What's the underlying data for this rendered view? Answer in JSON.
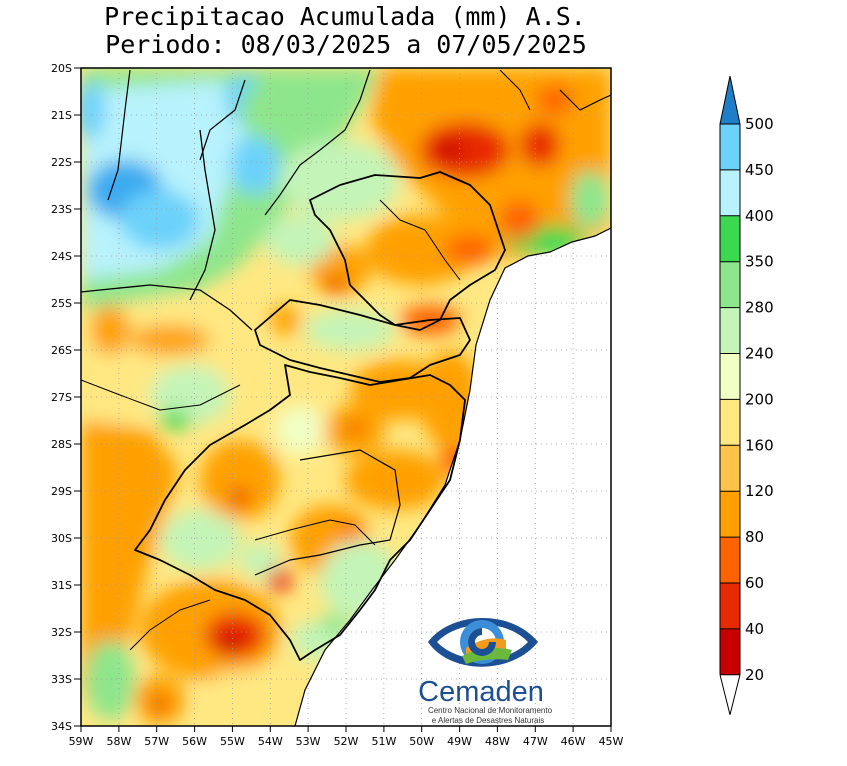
{
  "title": {
    "line1": "Precipitacao Acumulada (mm) A.S.",
    "line2": "Periodo: 08/03/2025 a 07/05/2025"
  },
  "map": {
    "lon_labels": [
      "59W",
      "58W",
      "57W",
      "56W",
      "55W",
      "54W",
      "53W",
      "52W",
      "51W",
      "50W",
      "49W",
      "48W",
      "47W",
      "46W",
      "45W"
    ],
    "lat_labels": [
      "20S",
      "21S",
      "22S",
      "23S",
      "24S",
      "25S",
      "26S",
      "27S",
      "28S",
      "29S",
      "30S",
      "31S",
      "32S",
      "33S",
      "34S"
    ],
    "lon_range": [
      -59,
      -45
    ],
    "lat_range": [
      -34,
      -20
    ],
    "grid": "dotted"
  },
  "legend": {
    "labels": [
      "20",
      "40",
      "60",
      "80",
      "120",
      "160",
      "200",
      "240",
      "280",
      "350",
      "400",
      "450",
      "500"
    ],
    "colors": [
      "#c80000",
      "#e82a00",
      "#ff6400",
      "#ffa000",
      "#ffc24a",
      "#ffe882",
      "#f1ffc4",
      "#c4f4b8",
      "#8ee68c",
      "#3cd850",
      "#b8f2fc",
      "#6cd2fa",
      "#3aaaf0",
      "#1e7ec8"
    ]
  },
  "logo": {
    "name": "Cemaden",
    "subtitle_line1": "Centro Nacional de Monitoramento",
    "subtitle_line2": "e Alertas de Desastres Naturais"
  }
}
